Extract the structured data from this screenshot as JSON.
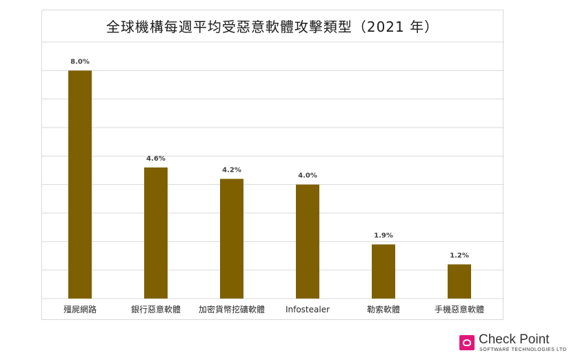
{
  "chart_data": {
    "type": "bar",
    "title": "全球機構每週平均受惡意軟體攻擊類型（2021 年）",
    "categories": [
      "殭屍網路",
      "銀行惡意軟體",
      "加密貨幣挖礦軟體",
      "Infostealer",
      "勒索軟體",
      "手機惡意軟體"
    ],
    "values": [
      8.0,
      4.6,
      4.2,
      4.0,
      1.9,
      1.2
    ],
    "data_labels": [
      "8.0%",
      "4.6%",
      "4.2%",
      "4.0%",
      "1.9%",
      "1.2%"
    ],
    "unit": "%",
    "ylim": [
      0,
      9
    ],
    "grid": true,
    "bar_color": "#7f6000",
    "legend": "none"
  },
  "branding": {
    "name": "Check Point",
    "tagline": "SOFTWARE TECHNOLOGIES LTD"
  }
}
